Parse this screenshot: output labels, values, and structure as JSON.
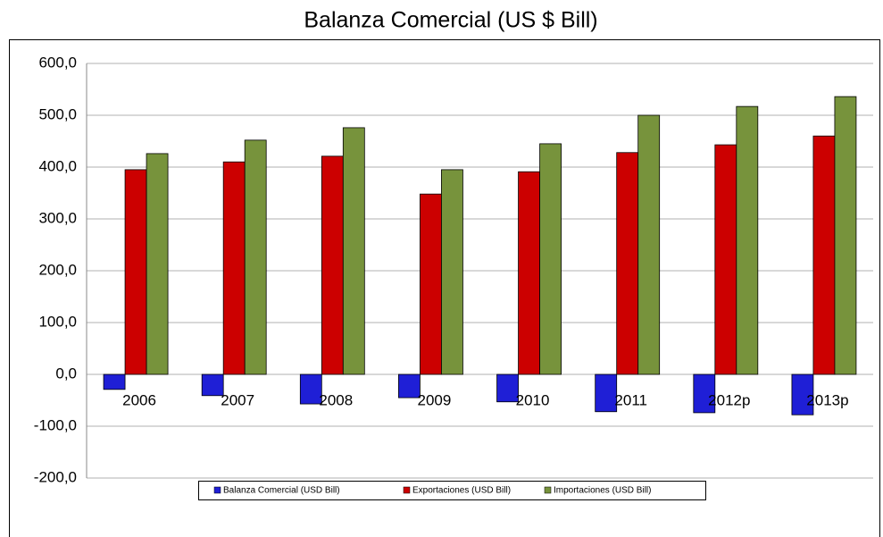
{
  "chart_data": {
    "type": "bar",
    "title": "Balanza Comercial (US $ Bill)",
    "categories": [
      "2006",
      "2007",
      "2008",
      "2009",
      "2010",
      "2011",
      "2012p",
      "2013p"
    ],
    "series": [
      {
        "name": "Balanza Comercial (USD Bill)",
        "color": "#1f1fd6",
        "values": [
          -29,
          -41,
          -57,
          -45,
          -53,
          -72,
          -74,
          -78
        ]
      },
      {
        "name": "Exportaciones (USD Bill)",
        "color": "#cc0000",
        "values": [
          395,
          410,
          421,
          348,
          391,
          428,
          443,
          460
        ]
      },
      {
        "name": "Importaciones (USD Bill)",
        "color": "#77933c",
        "values": [
          426,
          452,
          476,
          395,
          445,
          500,
          517,
          536
        ]
      }
    ],
    "ylim": [
      -200,
      600
    ],
    "yticks": [
      {
        "value": -200,
        "label": "-200,0"
      },
      {
        "value": -100,
        "label": "-100,0"
      },
      {
        "value": 0,
        "label": "0,0"
      },
      {
        "value": 100,
        "label": "100,0"
      },
      {
        "value": 200,
        "label": "200,0"
      },
      {
        "value": 300,
        "label": "300,0"
      },
      {
        "value": 400,
        "label": "400,0"
      },
      {
        "value": 500,
        "label": "500,0"
      },
      {
        "value": 600,
        "label": "600,0"
      }
    ],
    "grid": true,
    "legend": "bottom"
  }
}
